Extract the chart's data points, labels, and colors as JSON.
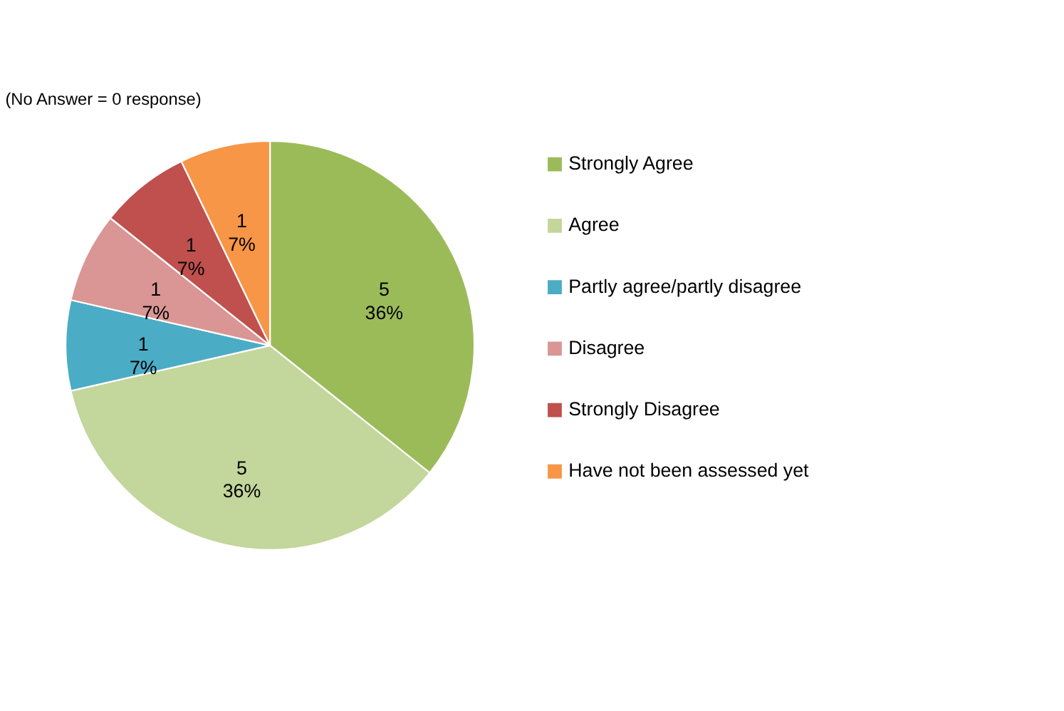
{
  "chart_data": {
    "type": "pie",
    "title": "(No Answer = 0 response)",
    "categories": [
      "Strongly Agree",
      "Agree",
      "Partly agree/partly disagree",
      "Disagree",
      "Strongly Disagree",
      "Have not been assessed yet"
    ],
    "values": [
      5,
      5,
      1,
      1,
      1,
      1
    ],
    "value_labels": [
      "5\n36%",
      "5\n36%",
      "1\n7%",
      "1\n7%",
      "1\n7%",
      "1\n7%"
    ],
    "colors": [
      "#9bbb59",
      "#c3d69b",
      "#4bacc6",
      "#d99694",
      "#c0504d",
      "#f79646"
    ],
    "legend": "right"
  }
}
